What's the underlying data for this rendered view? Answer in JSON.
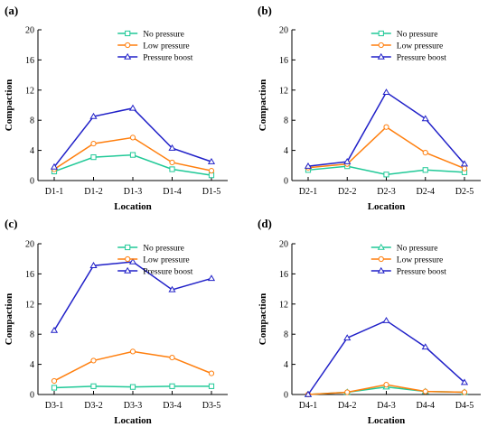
{
  "charts": [
    {
      "panel_label": "(a)",
      "chart_data": {
        "type": "line",
        "categories": [
          "D1-1",
          "D1-2",
          "D1-3",
          "D1-4",
          "D1-5"
        ],
        "series": [
          {
            "name": "No pressure",
            "values": [
              1.2,
              3.1,
              3.4,
              1.5,
              0.7
            ],
            "color": "#20c997",
            "marker": "square"
          },
          {
            "name": "Low pressure",
            "values": [
              1.5,
              4.9,
              5.7,
              2.4,
              1.3
            ],
            "color": "#ff7f0e",
            "marker": "circle"
          },
          {
            "name": "Pressure boost",
            "values": [
              1.8,
              8.5,
              9.6,
              4.3,
              2.5
            ],
            "color": "#2020c8",
            "marker": "triangle"
          }
        ],
        "xlabel": "Location",
        "ylabel": "Compaction",
        "ylim": [
          0,
          20
        ],
        "yticks": [
          0,
          4,
          8,
          12,
          16,
          20
        ],
        "legend": "top-right",
        "grid": false
      }
    },
    {
      "panel_label": "(b)",
      "chart_data": {
        "type": "line",
        "categories": [
          "D2-1",
          "D2-2",
          "D2-3",
          "D2-4",
          "D2-5"
        ],
        "series": [
          {
            "name": "No pressure",
            "values": [
              1.4,
              1.9,
              0.8,
              1.4,
              1.1
            ],
            "color": "#20c997",
            "marker": "square"
          },
          {
            "name": "Low pressure",
            "values": [
              1.7,
              2.2,
              7.1,
              3.7,
              1.6
            ],
            "color": "#ff7f0e",
            "marker": "circle"
          },
          {
            "name": "Pressure boost",
            "values": [
              1.9,
              2.5,
              11.7,
              8.2,
              2.2
            ],
            "color": "#2020c8",
            "marker": "triangle"
          }
        ],
        "xlabel": "Location",
        "ylabel": "Compaction",
        "ylim": [
          0,
          20
        ],
        "yticks": [
          0,
          4,
          8,
          12,
          16,
          20
        ],
        "legend": "top-right",
        "grid": false
      }
    },
    {
      "panel_label": "(c)",
      "chart_data": {
        "type": "line",
        "categories": [
          "D3-1",
          "D3-2",
          "D3-3",
          "D3-4",
          "D3-5"
        ],
        "series": [
          {
            "name": "No pressure",
            "values": [
              0.9,
              1.1,
              1.0,
              1.1,
              1.1
            ],
            "color": "#20c997",
            "marker": "square"
          },
          {
            "name": "Low pressure",
            "values": [
              1.8,
              4.5,
              5.7,
              4.9,
              2.8
            ],
            "color": "#ff7f0e",
            "marker": "circle"
          },
          {
            "name": "Pressure boost",
            "values": [
              8.5,
              17.1,
              17.6,
              13.9,
              15.4
            ],
            "color": "#2020c8",
            "marker": "triangle"
          }
        ],
        "xlabel": "Location",
        "ylabel": "Compaction",
        "ylim": [
          0,
          20
        ],
        "yticks": [
          0,
          4,
          8,
          12,
          16,
          20
        ],
        "legend": "top-right",
        "grid": false
      }
    },
    {
      "panel_label": "(d)",
      "chart_data": {
        "type": "line",
        "categories": [
          "D4-1",
          "D4-2",
          "D4-3",
          "D4-4",
          "D4-5"
        ],
        "series": [
          {
            "name": "No pressure",
            "values": [
              0.0,
              0.3,
              1.0,
              0.4,
              0.3
            ],
            "color": "#20c997",
            "marker": "triangle"
          },
          {
            "name": "Low pressure",
            "values": [
              0.0,
              0.3,
              1.3,
              0.4,
              0.3
            ],
            "color": "#ff7f0e",
            "marker": "circle"
          },
          {
            "name": "Pressure boost",
            "values": [
              0.0,
              7.5,
              9.8,
              6.3,
              1.6
            ],
            "color": "#2020c8",
            "marker": "triangle"
          }
        ],
        "xlabel": "Location",
        "ylabel": "Compaction",
        "ylim": [
          0,
          20
        ],
        "yticks": [
          0,
          4,
          8,
          12,
          16,
          20
        ],
        "legend": "top-right",
        "grid": false
      }
    }
  ]
}
